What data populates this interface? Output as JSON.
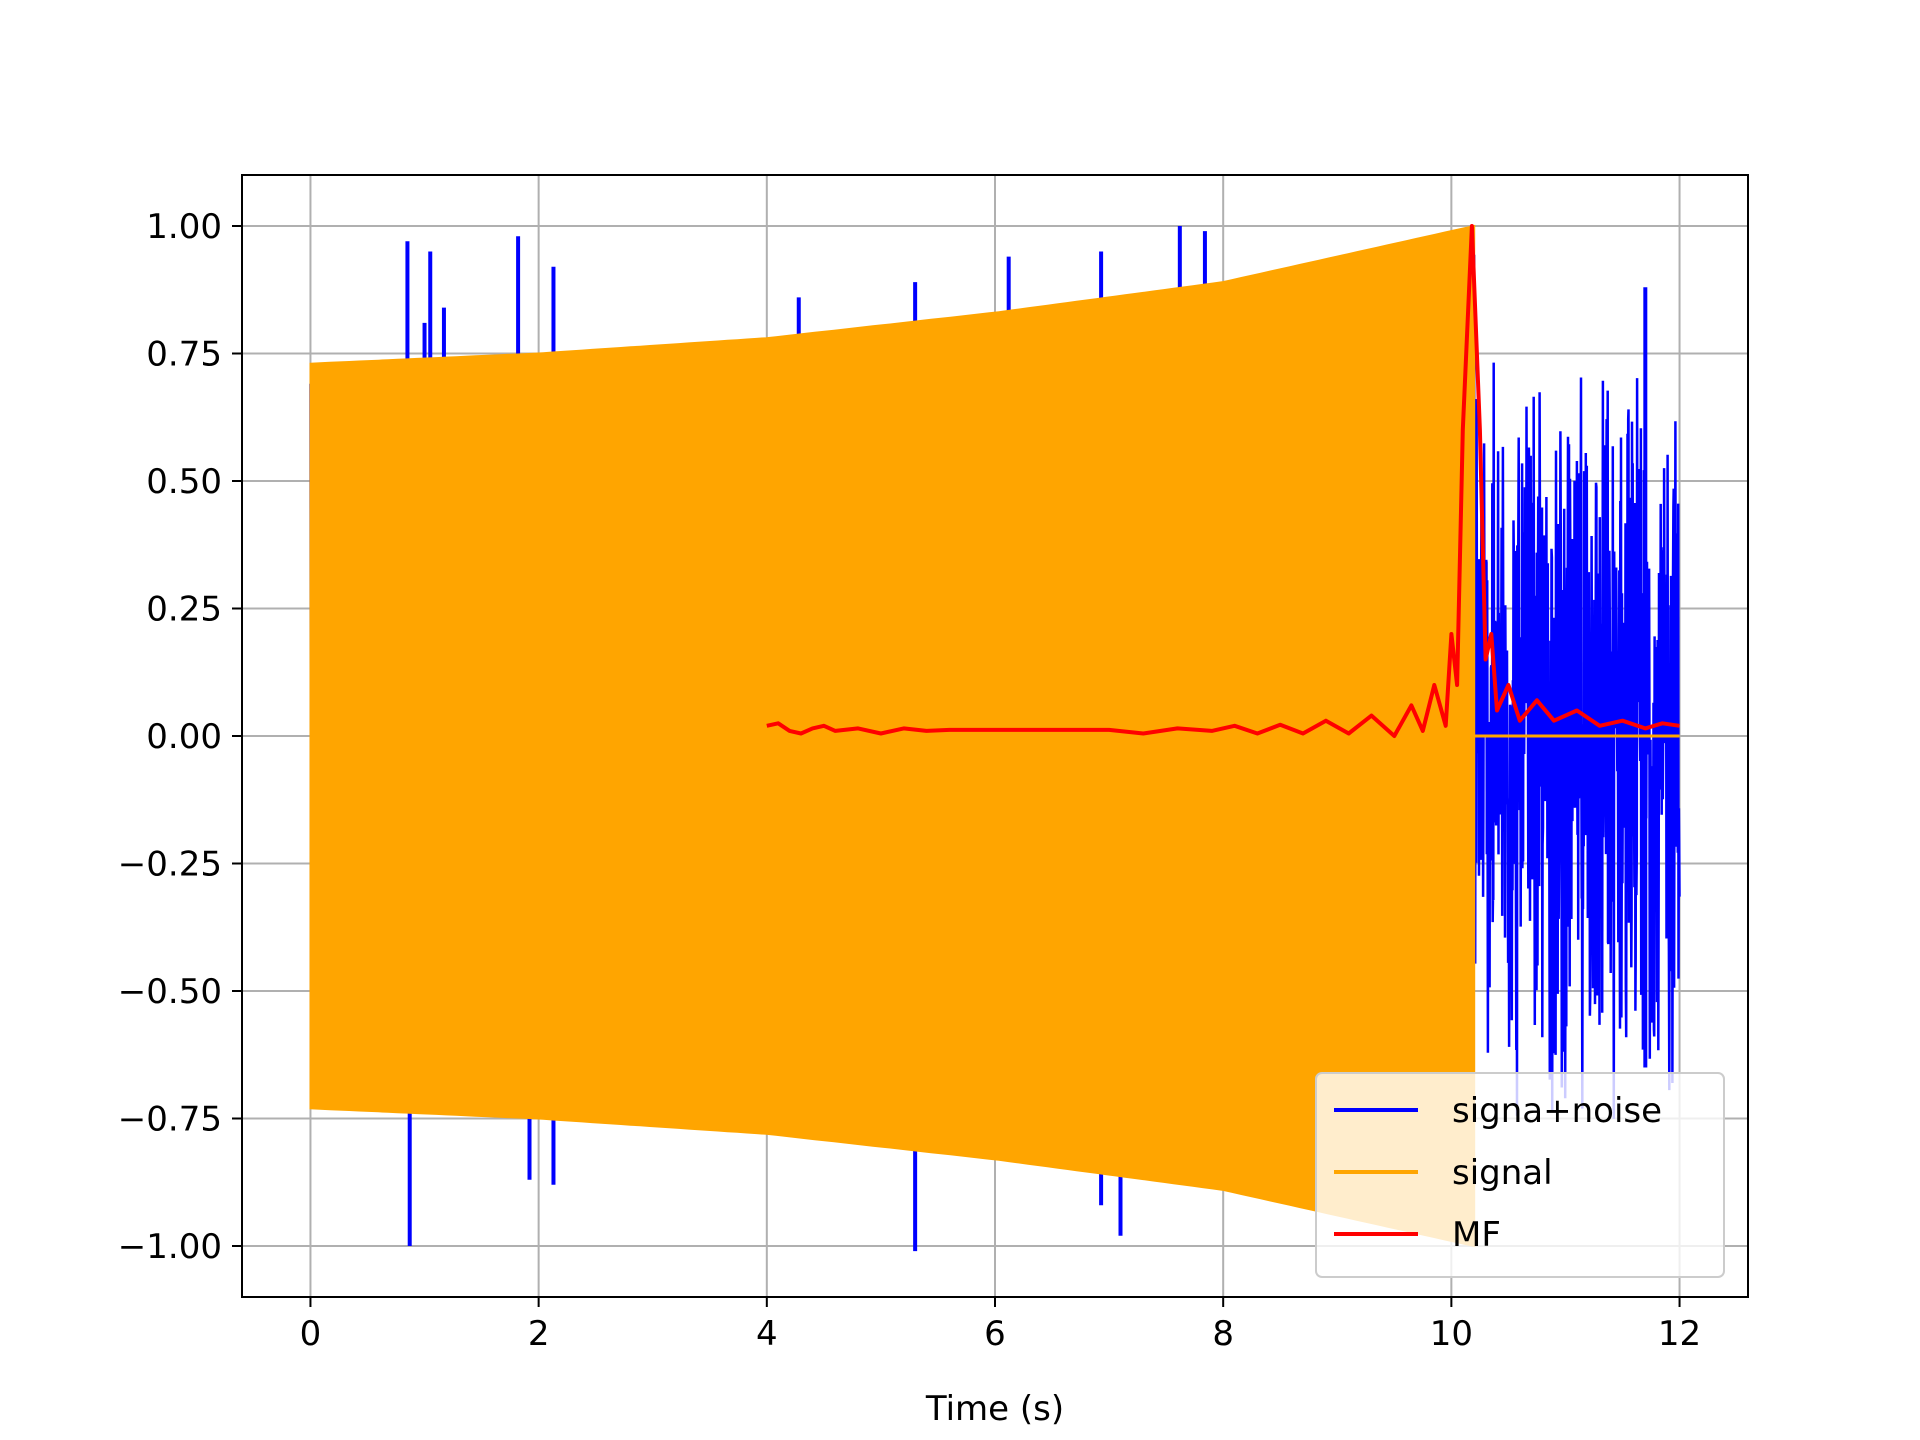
{
  "chart_data": {
    "type": "line",
    "title": "",
    "xlabel": "Time (s)",
    "ylabel": "",
    "xlim": [
      -0.6,
      12.6
    ],
    "ylim": [
      -1.1,
      1.1
    ],
    "xticks": [
      0,
      2,
      4,
      6,
      8,
      10,
      12
    ],
    "xtick_labels": [
      "0",
      "2",
      "4",
      "6",
      "8",
      "10",
      "12"
    ],
    "yticks": [
      1.0,
      0.75,
      0.5,
      0.25,
      0.0,
      -0.25,
      -0.5,
      -0.75,
      -1.0
    ],
    "ytick_labels": [
      "1.00",
      "0.75",
      "0.50",
      "0.25",
      "0.00",
      "−0.25",
      "−0.50",
      "−0.75",
      "−1.00"
    ],
    "grid": true,
    "legend_position": "lower-right",
    "series": [
      {
        "name": "signa+noise",
        "color": "#0000ff",
        "description_points": {
          "x_range": [
            0,
            12
          ],
          "spikes": [
            [
              0.85,
              0.97
            ],
            [
              0.87,
              -1.0
            ],
            [
              1.05,
              0.95
            ],
            [
              1.17,
              0.84
            ],
            [
              1.0,
              0.81
            ],
            [
              1.82,
              0.98
            ],
            [
              2.13,
              0.92
            ],
            [
              2.13,
              -0.88
            ],
            [
              1.92,
              -0.87
            ],
            [
              4.28,
              0.86
            ],
            [
              5.3,
              0.89
            ],
            [
              5.3,
              -1.01
            ],
            [
              6.12,
              0.94
            ],
            [
              6.93,
              0.95
            ],
            [
              6.93,
              -0.92
            ],
            [
              7.1,
              -0.98
            ],
            [
              7.62,
              1.0
            ],
            [
              7.84,
              0.99
            ],
            [
              9.02,
              0.1
            ],
            [
              11.7,
              0.88
            ],
            [
              11.7,
              -0.65
            ]
          ],
          "noise_amplitude_after_signal": 0.8,
          "signal_end": 10.2
        }
      },
      {
        "name": "signal",
        "color": "#ffa500",
        "envelope": [
          [
            0,
            0.73
          ],
          [
            2,
            0.75
          ],
          [
            4,
            0.78
          ],
          [
            6,
            0.83
          ],
          [
            8,
            0.89
          ],
          [
            10.2,
            1.0
          ]
        ],
        "end": 10.2,
        "after_end_value": 0.0
      },
      {
        "name": "MF",
        "color": "#ff0000",
        "points": [
          [
            4.0,
            0.02
          ],
          [
            4.1,
            0.025
          ],
          [
            4.2,
            0.01
          ],
          [
            4.3,
            0.005
          ],
          [
            4.4,
            0.015
          ],
          [
            4.5,
            0.02
          ],
          [
            4.6,
            0.01
          ],
          [
            4.8,
            0.015
          ],
          [
            5.0,
            0.005
          ],
          [
            5.2,
            0.015
          ],
          [
            5.4,
            0.01
          ],
          [
            5.6,
            0.012
          ],
          [
            6.0,
            0.012
          ],
          [
            6.5,
            0.012
          ],
          [
            7.0,
            0.012
          ],
          [
            7.3,
            0.005
          ],
          [
            7.6,
            0.015
          ],
          [
            7.9,
            0.01
          ],
          [
            8.1,
            0.02
          ],
          [
            8.3,
            0.005
          ],
          [
            8.5,
            0.022
          ],
          [
            8.7,
            0.005
          ],
          [
            8.9,
            0.03
          ],
          [
            9.1,
            0.005
          ],
          [
            9.3,
            0.04
          ],
          [
            9.5,
            0.0
          ],
          [
            9.65,
            0.06
          ],
          [
            9.75,
            0.01
          ],
          [
            9.85,
            0.1
          ],
          [
            9.95,
            0.02
          ],
          [
            10.0,
            0.2
          ],
          [
            10.05,
            0.1
          ],
          [
            10.1,
            0.6
          ],
          [
            10.18,
            1.0
          ],
          [
            10.25,
            0.6
          ],
          [
            10.3,
            0.15
          ],
          [
            10.35,
            0.2
          ],
          [
            10.4,
            0.05
          ],
          [
            10.5,
            0.1
          ],
          [
            10.6,
            0.03
          ],
          [
            10.75,
            0.07
          ],
          [
            10.9,
            0.03
          ],
          [
            11.1,
            0.05
          ],
          [
            11.3,
            0.02
          ],
          [
            11.5,
            0.03
          ],
          [
            11.7,
            0.015
          ],
          [
            11.85,
            0.025
          ],
          [
            12.0,
            0.02
          ]
        ]
      }
    ]
  }
}
